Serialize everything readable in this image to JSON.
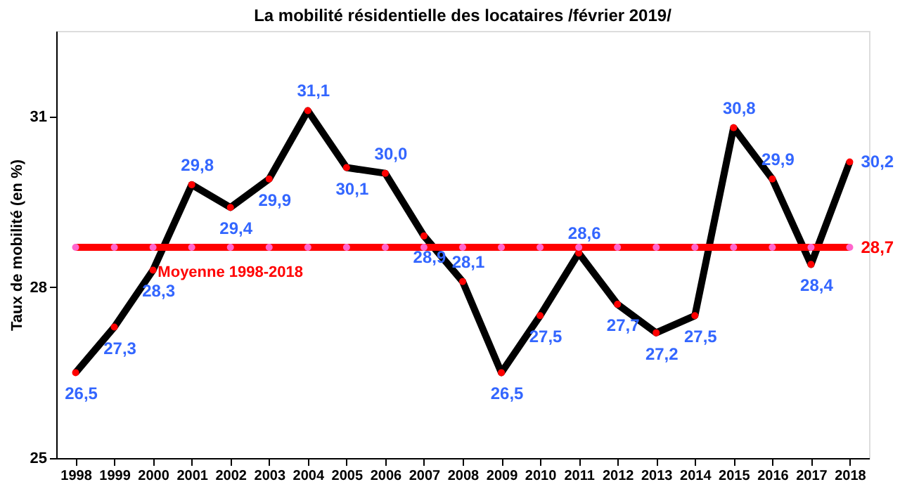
{
  "chart_data": {
    "type": "line",
    "title": "La mobilité résidentielle des locataires /février 2019/",
    "ylabel": "Taux de mobilité (en %)",
    "categories": [
      "1998",
      "1999",
      "2000",
      "2001",
      "2002",
      "2003",
      "2004",
      "2005",
      "2006",
      "2007",
      "2008",
      "2009",
      "2010",
      "2011",
      "2012",
      "2013",
      "2014",
      "2015",
      "2016",
      "2017",
      "2018"
    ],
    "series": [
      {
        "color": "#000000",
        "colors": [
          "#ff0000",
          "#ff0000",
          "#ff0000",
          "#ff0000",
          "#ff0000",
          "#ff0000",
          "#ff0000",
          "#ff0000",
          "#ff0000",
          "#ff0000",
          "#ff0000",
          "#ff0000",
          "#ff0000",
          "#ff0000",
          "#ff0000",
          "#ff0000",
          "#ff0000",
          "#ff0000",
          "#ff0000",
          "#ff0000",
          "#ff0000"
        ],
        "values": [
          26.5,
          27.3,
          28.3,
          29.8,
          29.4,
          29.9,
          31.1,
          30.1,
          30.0,
          28.9,
          28.1,
          26.5,
          27.5,
          28.6,
          27.7,
          27.2,
          27.5,
          30.8,
          29.9,
          28.4,
          30.2
        ],
        "value_labels": [
          "26,5",
          "27,3",
          "28,3",
          "29,8",
          "29,4",
          "29,9",
          "31,1",
          "30,1",
          "30,0",
          "28,9",
          "28,1",
          "26,5",
          "27,5",
          "28,6",
          "27,7",
          "27,2",
          "27,5",
          "30,8",
          "29,9",
          "28,4",
          "30,2"
        ]
      },
      {
        "name": "Moyenne 1998-2018",
        "color": "#ff0000",
        "colors": [
          "#ff66cc",
          "#ff66cc",
          "#ff66cc",
          "#ff66cc",
          "#ff66cc",
          "#ff66cc",
          "#ff66cc",
          "#ff66cc",
          "#ff66cc",
          "#ff66cc",
          "#ff66cc",
          "#ff66cc",
          "#ff66cc",
          "#ff66cc",
          "#ff66cc",
          "#ff66cc",
          "#ff66cc",
          "#ff66cc",
          "#ff66cc",
          "#ff66cc",
          "#ff66cc"
        ],
        "values": [
          28.7,
          28.7,
          28.7,
          28.7,
          28.7,
          28.7,
          28.7,
          28.7,
          28.7,
          28.7,
          28.7,
          28.7,
          28.7,
          28.7,
          28.7,
          28.7,
          28.7,
          28.7,
          28.7,
          28.7,
          28.7
        ],
        "value_labels": [
          null,
          null,
          null,
          null,
          null,
          null,
          null,
          null,
          null,
          null,
          null,
          null,
          null,
          null,
          null,
          null,
          null,
          null,
          null,
          null,
          "28,7"
        ]
      }
    ],
    "ylim": [
      25,
      32.5
    ],
    "yticks": [
      25,
      28,
      31
    ],
    "grid": false,
    "legend": false,
    "marker": "circle",
    "line_style": "solid"
  }
}
